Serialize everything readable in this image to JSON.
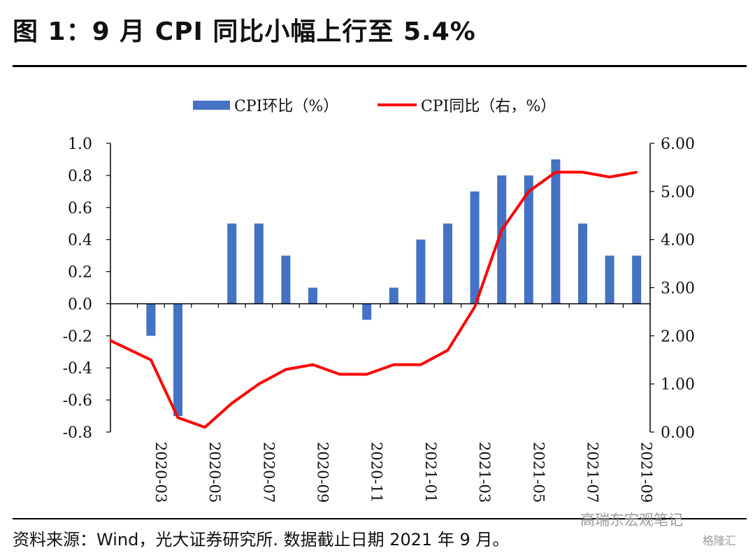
{
  "header": {
    "title": "图 1：9 月 CPI 同比小幅上行至 5.4%"
  },
  "footer": {
    "source": "资料来源：Wind，光大证券研究所. 数据截止日期 2021 年 9 月。",
    "watermark": "高瑞东宏观笔记",
    "watermark2": "格隆汇"
  },
  "chart_data": {
    "type": "bar",
    "categories": [
      "2020-02",
      "2020-03",
      "2020-04",
      "2020-05",
      "2020-06",
      "2020-07",
      "2020-08",
      "2020-09",
      "2020-10",
      "2020-11",
      "2020-12",
      "2021-01",
      "2021-02",
      "2021-03",
      "2021-04",
      "2021-05",
      "2021-06",
      "2021-07",
      "2021-08",
      "2021-09"
    ],
    "x_tick_labels": [
      "2020-03",
      "2020-05",
      "2020-07",
      "2020-09",
      "2020-11",
      "2021-01",
      "2021-03",
      "2021-05",
      "2021-07",
      "2021-09"
    ],
    "series": [
      {
        "name": "CPI环比（%）",
        "type": "bar",
        "axis": "left",
        "color": "#4472C4",
        "values": [
          null,
          -0.2,
          -0.7,
          null,
          0.5,
          0.5,
          0.3,
          0.1,
          null,
          -0.1,
          0.1,
          0.4,
          0.5,
          0.7,
          0.8,
          0.8,
          0.9,
          0.5,
          0.3,
          0.3
        ]
      },
      {
        "name": "CPI同比（右，%）",
        "type": "line",
        "axis": "right",
        "color": "#FF0000",
        "values": [
          1.9,
          1.5,
          0.3,
          0.1,
          0.6,
          1.0,
          1.3,
          1.4,
          1.2,
          1.2,
          1.4,
          1.4,
          1.7,
          2.6,
          4.2,
          5.0,
          5.4,
          5.4,
          5.3,
          5.4
        ]
      }
    ],
    "ylim_left": [
      -0.8,
      1.0
    ],
    "yticks_left": [
      "1.0",
      "0.8",
      "0.6",
      "0.4",
      "0.2",
      "0.0",
      "-0.2",
      "-0.4",
      "-0.6",
      "-0.8"
    ],
    "ylim_right": [
      0,
      6
    ],
    "yticks_right": [
      "6.00",
      "5.00",
      "4.00",
      "3.00",
      "2.00",
      "1.00",
      "0.00"
    ],
    "legend_position": "top",
    "grid": false
  }
}
